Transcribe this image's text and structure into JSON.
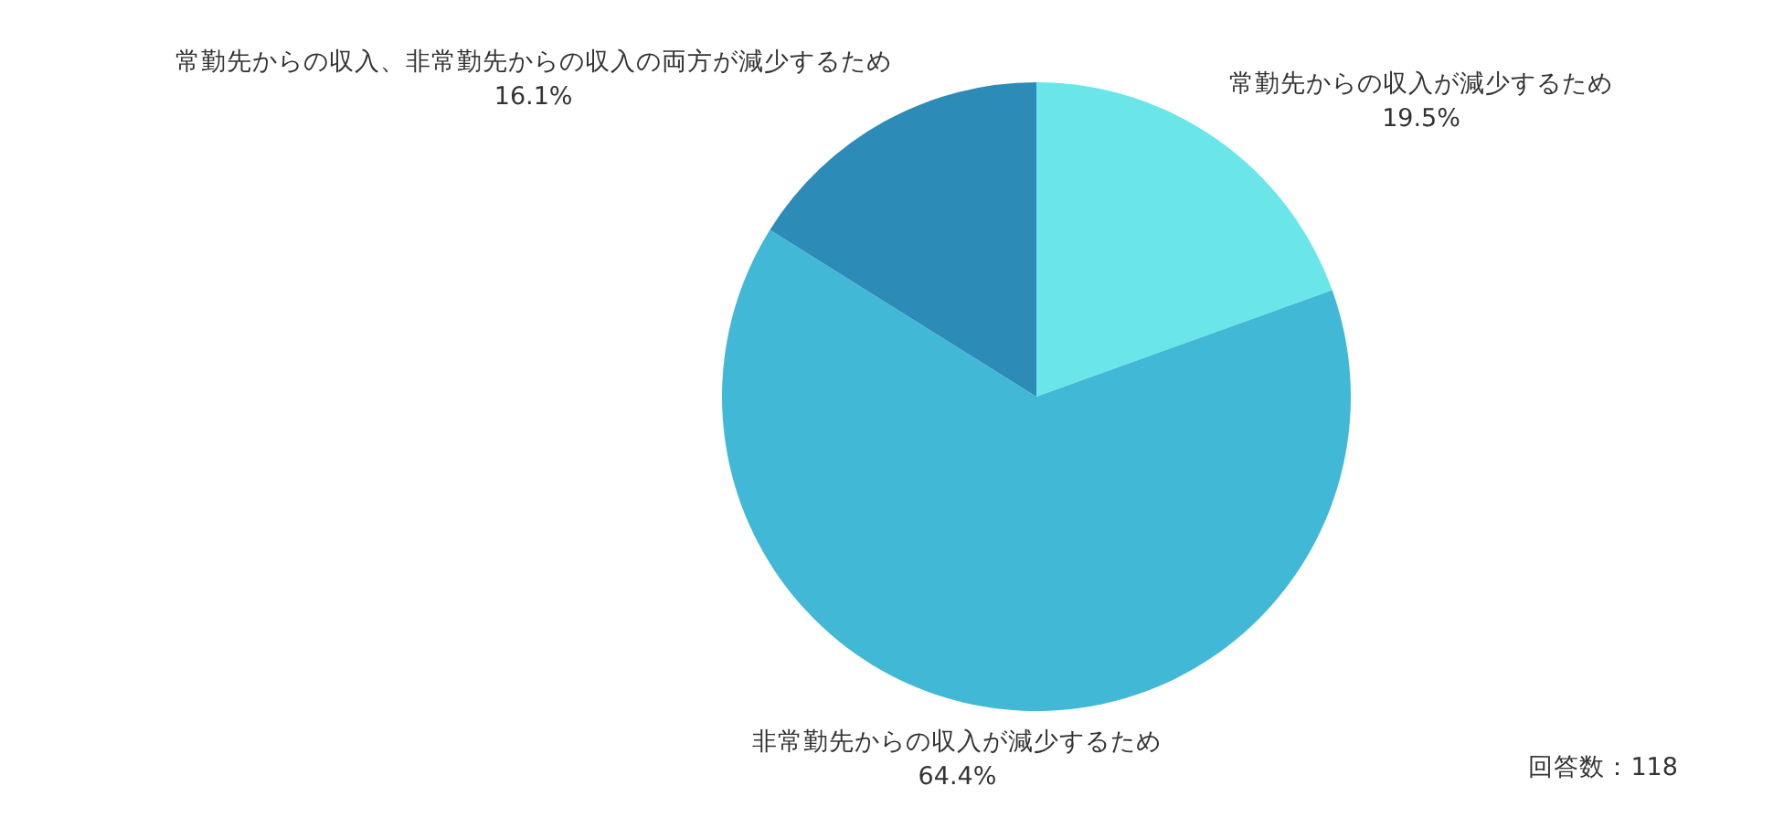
{
  "chart_data": {
    "type": "pie",
    "categories": [
      "常勤先からの収入が減少するため",
      "非常勤先からの収入が減少するため",
      "常勤先からの収入、非常勤先からの収入の両方が減少するため"
    ],
    "values": [
      19.5,
      64.4,
      16.1
    ],
    "colors": [
      "#6ae6e8",
      "#42b8d7",
      "#2d8bb8"
    ],
    "value_labels": [
      "19.5%",
      "64.4%",
      "16.1%"
    ],
    "annotations": [
      "回答数：118"
    ]
  }
}
